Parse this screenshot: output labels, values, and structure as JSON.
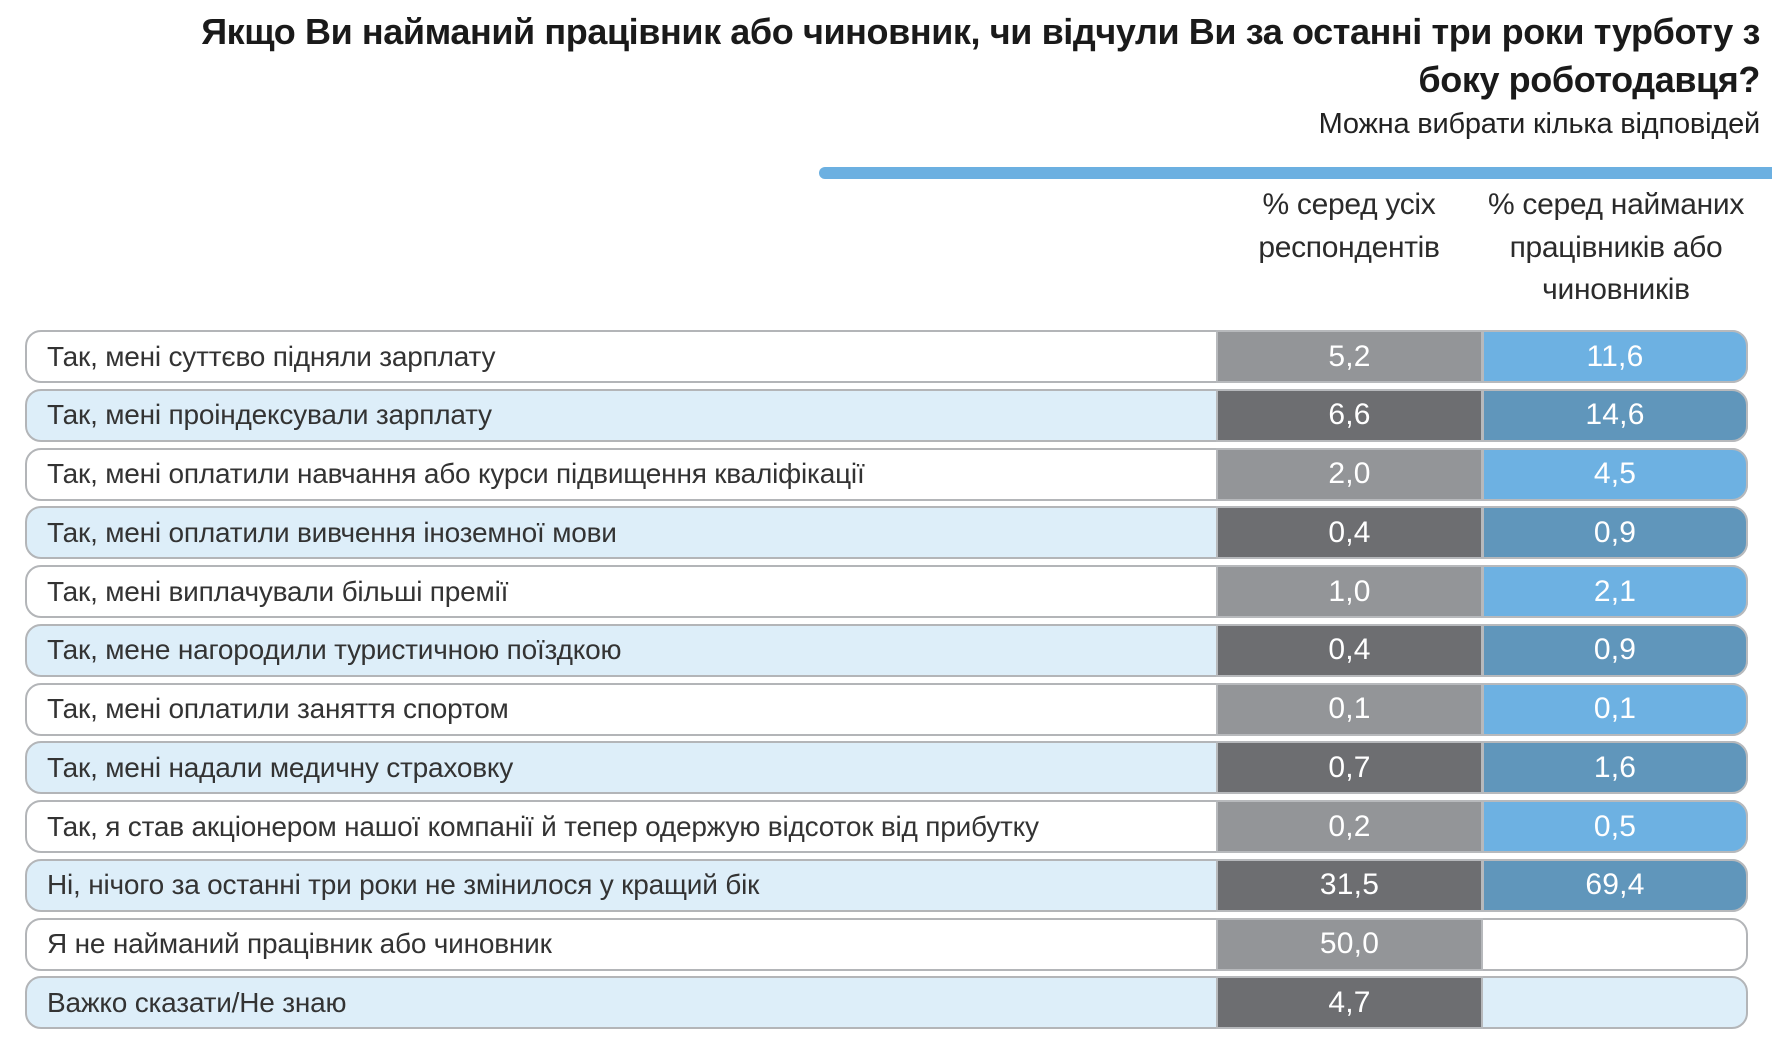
{
  "header": {
    "title_lines": [
      "Якщо Ви найманий працівник або чиновник, чи відчули Ви за останні три роки турботу з",
      "боку роботодавця?"
    ],
    "subtitle": "Можна вибрати кілька відповідей"
  },
  "columns": {
    "all": "% серед усіх респондентів",
    "employed": "% серед найманих працівників або чиновників"
  },
  "rows": [
    {
      "label": "Так, мені суттєво підняли зарплату",
      "all": "5,2",
      "employed": "11,6"
    },
    {
      "label": "Так, мені проіндексували зарплату",
      "all": "6,6",
      "employed": "14,6"
    },
    {
      "label": "Так, мені оплатили навчання або курси підвищення кваліфікації",
      "all": "2,0",
      "employed": "4,5"
    },
    {
      "label": "Так, мені оплатили вивчення іноземної мови",
      "all": "0,4",
      "employed": "0,9"
    },
    {
      "label": "Так, мені виплачували більші премії",
      "all": "1,0",
      "employed": "2,1"
    },
    {
      "label": "Так, мене нагородили туристичною поїздкою",
      "all": "0,4",
      "employed": "0,9"
    },
    {
      "label": "Так, мені оплатили заняття спортом",
      "all": "0,1",
      "employed": "0,1"
    },
    {
      "label": "Так, мені надали медичну страховку",
      "all": "0,7",
      "employed": "1,6"
    },
    {
      "label": "Так, я став акціонером нашої компанії й тепер одержую відсоток від прибутку",
      "all": "0,2",
      "employed": "0,5"
    },
    {
      "label": "Ні, нічого за останні три роки не змінилося у кращий бік",
      "all": "31,5",
      "employed": "69,4"
    },
    {
      "label": "Я не найманий працівник або чиновник",
      "all": "50,0"
    },
    {
      "label": "Важко сказати/Не знаю",
      "all": "4,7"
    }
  ],
  "colors": {
    "accent": "#6cb0e1",
    "gray-light": "#939598",
    "gray-dark": "#6d6e71",
    "blue-light": "#6db1e2",
    "blue-dark": "#6096bb",
    "row-alt": "#ddeef9",
    "row-border": "#b3b5b8",
    "cell-border": "#b7b9bc",
    "title-text": "#1a1a1a",
    "label-text": "#333333"
  },
  "chart_data": {
    "type": "table",
    "title": "Якщо Ви найманий працівник або чиновник, чи відчули Ви за останні три роки турботу з боку роботодавця?",
    "subtitle": "Можна вибрати кілька відповідей",
    "columns": [
      "% серед усіх респондентів",
      "% серед найманих працівників або чиновників"
    ],
    "categories": [
      "Так, мені суттєво підняли зарплату",
      "Так, мені проіндексували зарплату",
      "Так, мені оплатили навчання або курси підвищення кваліфікації",
      "Так, мені оплатили вивчення іноземної мови",
      "Так, мені виплачували більші премії",
      "Так, мене нагородили туристичною поїздкою",
      "Так, мені оплатили заняття спортом",
      "Так, мені надали медичну страховку",
      "Так, я став акціонером нашої компанії й тепер одержую відсоток від прибутку",
      "Ні, нічого за останні три роки не змінилося у кращий бік",
      "Я не найманий працівник або чиновник",
      "Важко сказати/Не знаю"
    ],
    "series": [
      {
        "name": "% серед усіх респондентів",
        "values": [
          5.2,
          6.6,
          2.0,
          0.4,
          1.0,
          0.4,
          0.1,
          0.7,
          0.2,
          31.5,
          50.0,
          4.7
        ]
      },
      {
        "name": "% серед найманих працівників або чиновників",
        "values": [
          11.6,
          14.6,
          4.5,
          0.9,
          2.1,
          0.9,
          0.1,
          1.6,
          0.5,
          69.4,
          null,
          null
        ]
      }
    ]
  }
}
